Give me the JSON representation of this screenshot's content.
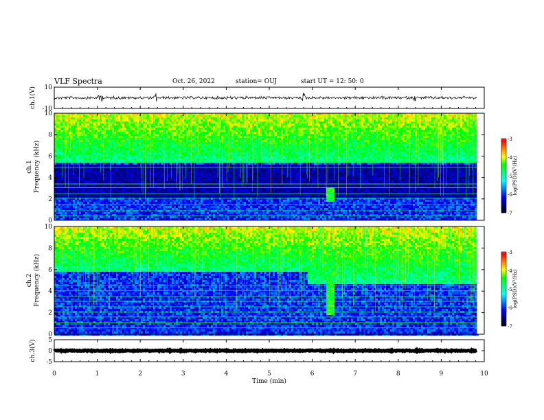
{
  "header": {
    "title": "VLF  Spectra",
    "date": "Oct. 26, 2022",
    "station": "station= OUJ",
    "start_ut": "start  UT  =    12: 50: 0"
  },
  "colors": {
    "spectrum_stops": [
      "#000000",
      "#000080",
      "#0000ff",
      "#0080ff",
      "#00ffff",
      "#00ff80",
      "#00ff00",
      "#ffff00",
      "#ff8000",
      "#ff0000",
      "#ffffff"
    ]
  },
  "chart_data": [
    {
      "type": "line",
      "id": "ch1_waveform",
      "ylabel": "ch.1(V)",
      "ylim": [
        -10,
        10
      ],
      "yticks": [
        "10",
        "-10"
      ],
      "xlim": [
        0,
        10
      ],
      "baseline": 0,
      "noise_amplitude": 1.2,
      "spikes_min": [
        1.05,
        1.1,
        2.35,
        5.8,
        8.4
      ]
    },
    {
      "type": "heatmap",
      "id": "ch1_spectrogram",
      "ylabel": "ch.1\nFrequency (kHz)",
      "ylabel_lines": [
        "ch.1",
        "Frequency (kHz)"
      ],
      "ylim": [
        0,
        10
      ],
      "yticks": [
        "0",
        "2",
        "4",
        "6",
        "8",
        "10"
      ],
      "xlim": [
        0,
        10
      ],
      "data_end_min": 9.83,
      "colorbar": {
        "label": "log(PSD)(V²/Hz)",
        "range": [
          -7,
          -3
        ],
        "ticks": [
          "-3",
          "-4",
          "-5",
          "-6",
          "-7"
        ]
      },
      "features": {
        "upper_band_khz": [
          5.5,
          10
        ],
        "dark_band_khz": [
          2.2,
          5.2
        ],
        "hum_lines_khz": [
          0.45,
          0.9,
          1.5,
          2.05,
          2.5,
          3.05,
          3.4,
          4.95,
          5.5
        ],
        "burst_min": 6.4,
        "burst_khz": [
          1.8,
          3.2
        ]
      }
    },
    {
      "type": "heatmap",
      "id": "ch2_spectrogram",
      "ylabel": "ch.2\nFrequency (kHz)",
      "ylabel_lines": [
        "ch.2",
        "Frequency (kHz)"
      ],
      "ylim": [
        0,
        10
      ],
      "yticks": [
        "0",
        "2",
        "4",
        "6",
        "8",
        "10"
      ],
      "xlim": [
        0,
        10
      ],
      "data_end_min": 9.83,
      "colorbar": {
        "label": "log(PSD)(V²/Hz)",
        "range": [
          -7,
          -3
        ],
        "ticks": [
          "-3",
          "-4",
          "-5",
          "-6",
          "-7"
        ]
      },
      "features": {
        "upper_band_khz": [
          5.8,
          10
        ],
        "shift_min": 5.85,
        "upper_band_after_shift_khz": [
          4.8,
          10
        ],
        "hum_lines_khz": [
          0.6,
          1.05,
          1.6,
          2.05,
          2.55,
          3.05,
          3.5,
          4.05,
          4.55
        ],
        "burst_min": 6.4,
        "burst_khz": [
          1.8,
          5.8
        ]
      }
    },
    {
      "type": "line",
      "id": "ch3_waveform",
      "ylabel": "ch.3(V)",
      "ylim": [
        -5,
        5
      ],
      "yticks": [
        "5",
        "0",
        "-5"
      ],
      "xlim": [
        0,
        10
      ],
      "baseline": 0,
      "noise_amplitude": 0.2,
      "xlabel": "Time  (min)",
      "xticks": [
        "0",
        "1",
        "2",
        "3",
        "4",
        "5",
        "6",
        "7",
        "8",
        "9",
        "10"
      ]
    }
  ]
}
